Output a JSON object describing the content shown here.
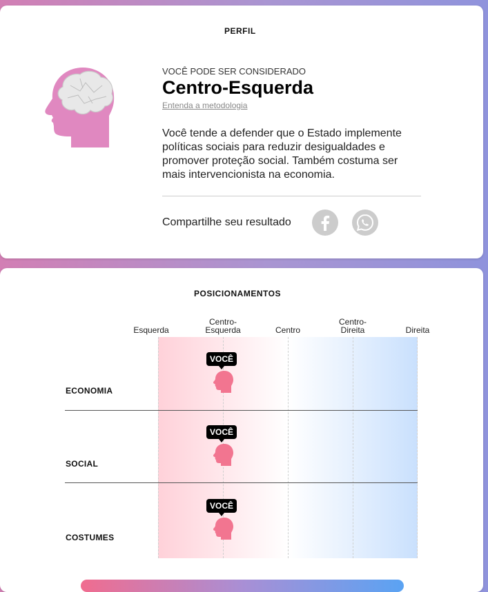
{
  "perfil": {
    "title": "PERFIL",
    "eyebrow": "VOCÊ PODE SER CONSIDERADO",
    "profile_name": "Centro-Esquerda",
    "method_link": "Entenda a metodologia",
    "description": "Você tende a defender que o Estado implemente políticas sociais para reduzir desigualdades e promover proteção social. Também costuma ser mais intervencionista na economia.",
    "share_label": "Compartilhe seu resultado",
    "share_buttons": [
      {
        "icon": "facebook-icon"
      },
      {
        "icon": "whatsapp-icon"
      }
    ],
    "head_color": "#e088c0"
  },
  "posicionamentos": {
    "title": "POSICIONAMENTOS",
    "columns": [
      "Esquerda",
      "Centro-\nEsquerda",
      "Centro",
      "Centro-\nDireita",
      "Direita"
    ],
    "rows": [
      {
        "label": "ECONOMIA",
        "tag": "VOCÊ",
        "position": "Centro-Esquerda"
      },
      {
        "label": "SOCIAL",
        "tag": "VOCÊ",
        "position": "Centro-Esquerda"
      },
      {
        "label": "COSTUMES",
        "tag": "VOCÊ",
        "position": "Centro-Esquerda"
      }
    ],
    "marker_color": "#f27590",
    "left_color": "#ffd1d9",
    "right_color": "#c9e0fd"
  }
}
